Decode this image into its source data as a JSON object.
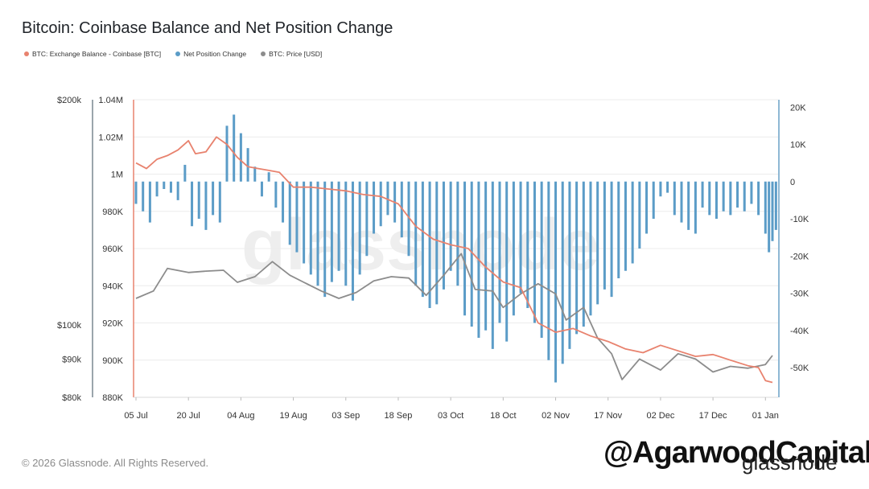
{
  "title": "Bitcoin: Coinbase Balance and Net Position Change",
  "copyright": "© 2026 Glassnode. All Rights Reserved.",
  "watermark_handle": "@AgarwoodCapital",
  "watermark_brand": "glassnode",
  "background_mark": "glassnode",
  "colors": {
    "balance": "#e8826e",
    "net_position": "#5b9cc7",
    "price": "#8c8c8c",
    "grid": "#ececec",
    "axis": "#d8d8d8"
  },
  "legend": [
    {
      "label": "BTC: Exchange Balance - Coinbase [BTC]",
      "color": "#e8826e"
    },
    {
      "label": "Net Position Change",
      "color": "#5b9cc7"
    },
    {
      "label": "BTC: Price [USD]",
      "color": "#8c8c8c"
    }
  ],
  "chart_data": {
    "type": "line",
    "title": "Bitcoin: Coinbase Balance and Net Position Change",
    "x_ticks": [
      "05 Jul",
      "20 Jul",
      "04 Aug",
      "19 Aug",
      "03 Sep",
      "18 Sep",
      "03 Oct",
      "18 Oct",
      "02 Nov",
      "17 Nov",
      "02 Dec",
      "17 Dec",
      "01 Jan"
    ],
    "balance_axis": {
      "ticks": [
        "880K",
        "900K",
        "920K",
        "940K",
        "960K",
        "980K",
        "1M",
        "1.02M",
        "1.04M"
      ],
      "ylim": [
        880000,
        1040000
      ]
    },
    "price_axis": {
      "ticks": [
        "$80k",
        "$90k",
        "$100k",
        "$200k"
      ],
      "scale": "log"
    },
    "net_position_axis": {
      "ticks": [
        "-50K",
        "-40K",
        "-30K",
        "-20K",
        "-10K",
        "0",
        "10K",
        "20K"
      ],
      "ylim": [
        -58000,
        22000
      ]
    },
    "series": [
      {
        "name": "BTC: Exchange Balance - Coinbase [BTC]",
        "axis": "balance",
        "points": [
          [
            "2025-07-05",
            1006000
          ],
          [
            "2025-07-08",
            1003000
          ],
          [
            "2025-07-11",
            1008000
          ],
          [
            "2025-07-14",
            1010000
          ],
          [
            "2025-07-17",
            1013000
          ],
          [
            "2025-07-20",
            1018000
          ],
          [
            "2025-07-22",
            1011000
          ],
          [
            "2025-07-25",
            1012000
          ],
          [
            "2025-07-28",
            1020000
          ],
          [
            "2025-07-31",
            1016000
          ],
          [
            "2025-08-03",
            1009000
          ],
          [
            "2025-08-06",
            1004000
          ],
          [
            "2025-08-09",
            1003000
          ],
          [
            "2025-08-12",
            1002000
          ],
          [
            "2025-08-15",
            1001000
          ],
          [
            "2025-08-19",
            993000
          ],
          [
            "2025-08-24",
            993000
          ],
          [
            "2025-08-29",
            992000
          ],
          [
            "2025-09-03",
            991000
          ],
          [
            "2025-09-08",
            989000
          ],
          [
            "2025-09-13",
            988000
          ],
          [
            "2025-09-18",
            984000
          ],
          [
            "2025-09-23",
            972000
          ],
          [
            "2025-09-28",
            965000
          ],
          [
            "2025-10-03",
            962000
          ],
          [
            "2025-10-08",
            960000
          ],
          [
            "2025-10-13",
            950000
          ],
          [
            "2025-10-18",
            942000
          ],
          [
            "2025-10-23",
            939000
          ],
          [
            "2025-10-28",
            920000
          ],
          [
            "2025-11-02",
            915000
          ],
          [
            "2025-11-07",
            917000
          ],
          [
            "2025-11-12",
            913000
          ],
          [
            "2025-11-17",
            910000
          ],
          [
            "2025-11-22",
            906000
          ],
          [
            "2025-11-27",
            904000
          ],
          [
            "2025-12-02",
            908000
          ],
          [
            "2025-12-07",
            905000
          ],
          [
            "2025-12-12",
            902000
          ],
          [
            "2025-12-17",
            903000
          ],
          [
            "2025-12-22",
            900000
          ],
          [
            "2025-12-27",
            897000
          ],
          [
            "2025-12-30",
            896000
          ],
          [
            "2026-01-01",
            889000
          ],
          [
            "2026-01-03",
            888000
          ]
        ]
      },
      {
        "name": "BTC: Price [USD]",
        "axis": "price",
        "points": [
          [
            "2025-07-05",
            108500
          ],
          [
            "2025-07-10",
            111000
          ],
          [
            "2025-07-14",
            119000
          ],
          [
            "2025-07-20",
            117500
          ],
          [
            "2025-07-25",
            118000
          ],
          [
            "2025-07-30",
            118300
          ],
          [
            "2025-08-03",
            114000
          ],
          [
            "2025-08-08",
            116000
          ],
          [
            "2025-08-13",
            121500
          ],
          [
            "2025-08-18",
            116500
          ],
          [
            "2025-08-22",
            114000
          ],
          [
            "2025-08-27",
            111000
          ],
          [
            "2025-09-01",
            108500
          ],
          [
            "2025-09-06",
            110500
          ],
          [
            "2025-09-11",
            114500
          ],
          [
            "2025-09-16",
            116000
          ],
          [
            "2025-09-21",
            115500
          ],
          [
            "2025-09-26",
            109500
          ],
          [
            "2025-10-01",
            116500
          ],
          [
            "2025-10-06",
            124500
          ],
          [
            "2025-10-10",
            111500
          ],
          [
            "2025-10-15",
            111000
          ],
          [
            "2025-10-18",
            105500
          ],
          [
            "2025-10-23",
            110000
          ],
          [
            "2025-10-28",
            113500
          ],
          [
            "2025-11-02",
            110000
          ],
          [
            "2025-11-05",
            101500
          ],
          [
            "2025-11-10",
            105500
          ],
          [
            "2025-11-14",
            96000
          ],
          [
            "2025-11-18",
            91500
          ],
          [
            "2025-11-21",
            84500
          ],
          [
            "2025-11-26",
            90000
          ],
          [
            "2025-12-02",
            87000
          ],
          [
            "2025-12-07",
            91500
          ],
          [
            "2025-12-12",
            90000
          ],
          [
            "2025-12-17",
            86500
          ],
          [
            "2025-12-22",
            88000
          ],
          [
            "2025-12-27",
            87500
          ],
          [
            "2026-01-01",
            88500
          ],
          [
            "2026-01-03",
            91000
          ]
        ]
      },
      {
        "name": "Net Position Change",
        "axis": "net_position",
        "type": "bar",
        "points": [
          [
            "2025-07-05",
            -6000
          ],
          [
            "2025-07-07",
            -8000
          ],
          [
            "2025-07-09",
            -11000
          ],
          [
            "2025-07-11",
            -4000
          ],
          [
            "2025-07-13",
            -2000
          ],
          [
            "2025-07-15",
            -3000
          ],
          [
            "2025-07-17",
            -5000
          ],
          [
            "2025-07-19",
            4500
          ],
          [
            "2025-07-21",
            -12000
          ],
          [
            "2025-07-23",
            -10000
          ],
          [
            "2025-07-25",
            -13000
          ],
          [
            "2025-07-27",
            -9000
          ],
          [
            "2025-07-29",
            -11000
          ],
          [
            "2025-07-31",
            15000
          ],
          [
            "2025-08-02",
            18000
          ],
          [
            "2025-08-04",
            13000
          ],
          [
            "2025-08-06",
            9000
          ],
          [
            "2025-08-08",
            4000
          ],
          [
            "2025-08-10",
            -4000
          ],
          [
            "2025-08-12",
            2500
          ],
          [
            "2025-08-14",
            -7000
          ],
          [
            "2025-08-16",
            -11000
          ],
          [
            "2025-08-18",
            -17000
          ],
          [
            "2025-08-20",
            -19000
          ],
          [
            "2025-08-22",
            -22000
          ],
          [
            "2025-08-24",
            -25000
          ],
          [
            "2025-08-26",
            -28000
          ],
          [
            "2025-08-28",
            -31000
          ],
          [
            "2025-08-30",
            -27000
          ],
          [
            "2025-09-01",
            -24000
          ],
          [
            "2025-09-03",
            -28000
          ],
          [
            "2025-09-05",
            -32000
          ],
          [
            "2025-09-07",
            -25000
          ],
          [
            "2025-09-09",
            -20000
          ],
          [
            "2025-09-11",
            -14000
          ],
          [
            "2025-09-13",
            -12000
          ],
          [
            "2025-09-15",
            -9000
          ],
          [
            "2025-09-17",
            -11000
          ],
          [
            "2025-09-19",
            -15000
          ],
          [
            "2025-09-21",
            -20000
          ],
          [
            "2025-09-23",
            -28000
          ],
          [
            "2025-09-25",
            -31000
          ],
          [
            "2025-09-27",
            -34000
          ],
          [
            "2025-09-29",
            -33000
          ],
          [
            "2025-10-01",
            -29000
          ],
          [
            "2025-10-03",
            -24000
          ],
          [
            "2025-10-05",
            -28000
          ],
          [
            "2025-10-07",
            -36000
          ],
          [
            "2025-10-09",
            -39000
          ],
          [
            "2025-10-11",
            -42000
          ],
          [
            "2025-10-13",
            -40000
          ],
          [
            "2025-10-15",
            -45000
          ],
          [
            "2025-10-17",
            -38000
          ],
          [
            "2025-10-19",
            -43000
          ],
          [
            "2025-10-21",
            -36000
          ],
          [
            "2025-10-23",
            -30000
          ],
          [
            "2025-10-25",
            -34000
          ],
          [
            "2025-10-27",
            -38000
          ],
          [
            "2025-10-29",
            -42000
          ],
          [
            "2025-10-31",
            -48000
          ],
          [
            "2025-11-02",
            -54000
          ],
          [
            "2025-11-04",
            -49000
          ],
          [
            "2025-11-06",
            -45000
          ],
          [
            "2025-11-08",
            -41000
          ],
          [
            "2025-11-10",
            -39000
          ],
          [
            "2025-11-12",
            -36000
          ],
          [
            "2025-11-14",
            -33000
          ],
          [
            "2025-11-16",
            -29000
          ],
          [
            "2025-11-18",
            -31000
          ],
          [
            "2025-11-20",
            -26000
          ],
          [
            "2025-11-22",
            -24000
          ],
          [
            "2025-11-24",
            -22000
          ],
          [
            "2025-11-26",
            -18000
          ],
          [
            "2025-11-28",
            -14000
          ],
          [
            "2025-11-30",
            -10000
          ],
          [
            "2025-12-02",
            -4000
          ],
          [
            "2025-12-04",
            -3000
          ],
          [
            "2025-12-06",
            -9000
          ],
          [
            "2025-12-08",
            -11000
          ],
          [
            "2025-12-10",
            -13000
          ],
          [
            "2025-12-12",
            -14000
          ],
          [
            "2025-12-14",
            -7000
          ],
          [
            "2025-12-16",
            -9000
          ],
          [
            "2025-12-18",
            -10000
          ],
          [
            "2025-12-20",
            -8000
          ],
          [
            "2025-12-22",
            -9000
          ],
          [
            "2025-12-24",
            -7000
          ],
          [
            "2025-12-26",
            -8000
          ],
          [
            "2025-12-28",
            -6000
          ],
          [
            "2025-12-30",
            -9000
          ],
          [
            "2026-01-01",
            -14000
          ],
          [
            "2026-01-02",
            -19000
          ],
          [
            "2026-01-03",
            -16000
          ],
          [
            "2026-01-04",
            -13000
          ]
        ]
      }
    ],
    "legend_position": "top-left",
    "grid": true
  }
}
